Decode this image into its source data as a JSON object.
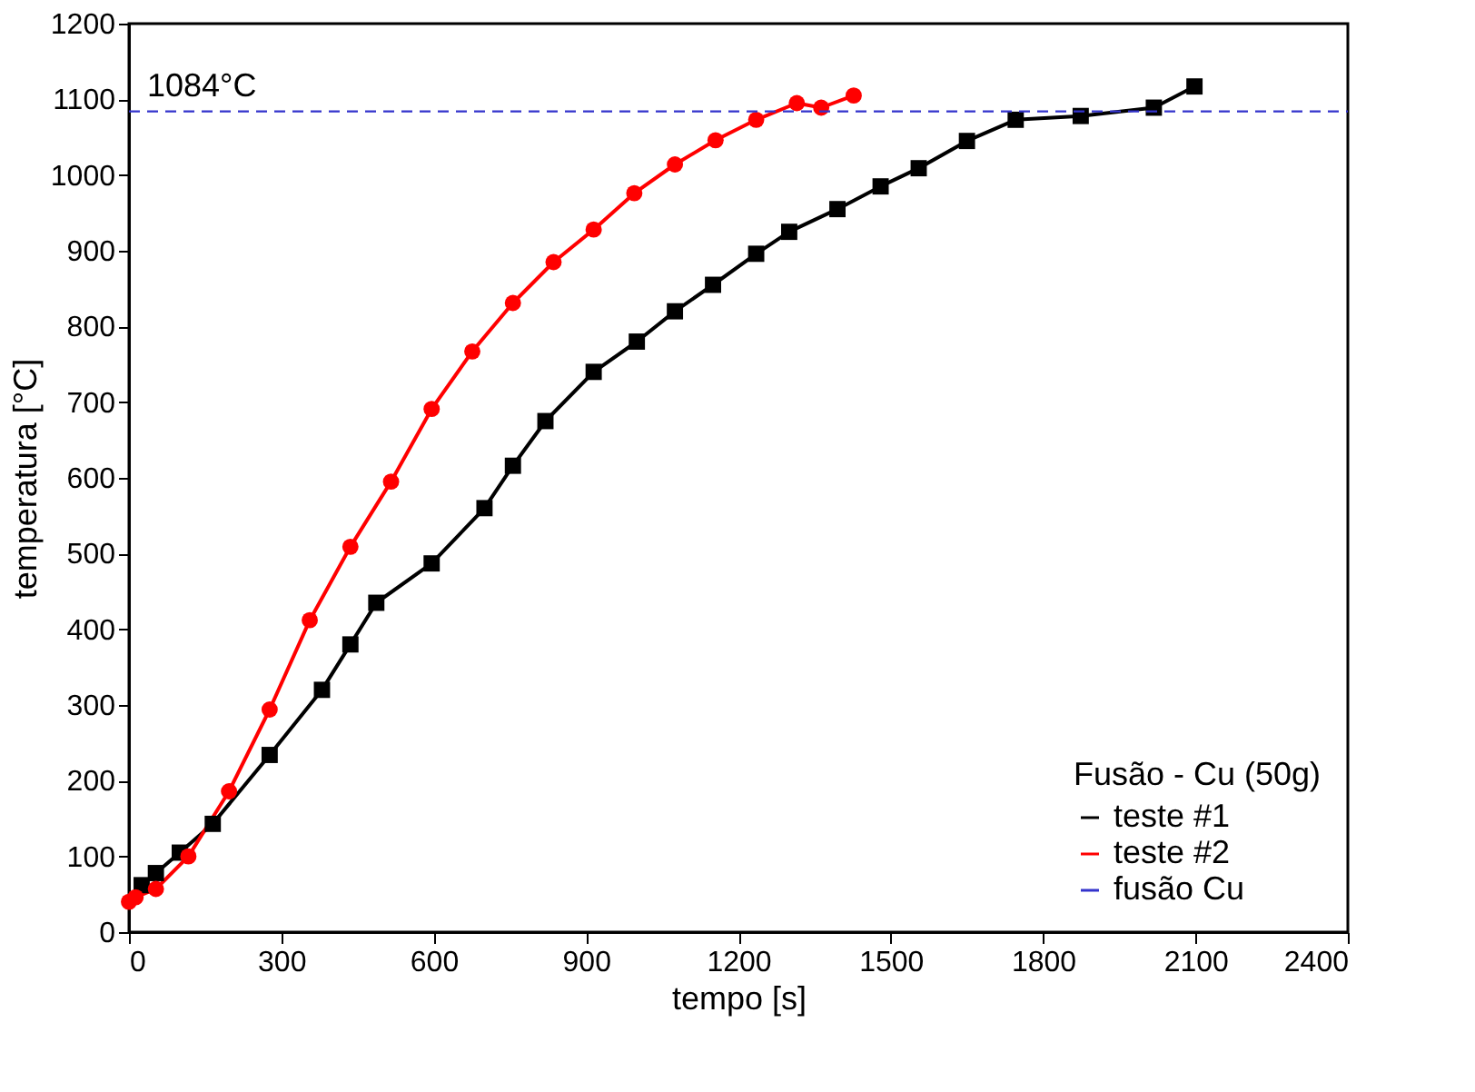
{
  "chart_data": {
    "type": "line",
    "xlabel": "tempo [s]",
    "ylabel": "temperatura [°C]",
    "legend_title": "Fusão - Cu (50g)",
    "legend": "bottom right",
    "grid": false,
    "xlim": [
      0,
      2400
    ],
    "xticks": [
      0,
      300,
      600,
      900,
      1200,
      1500,
      1800,
      2100,
      2400
    ],
    "line_style": "solid",
    "ylim": [
      0,
      1200
    ],
    "yticks": [
      0,
      100,
      200,
      300,
      400,
      500,
      600,
      700,
      800,
      900,
      1000,
      1100,
      1200
    ],
    "series": [
      {
        "name": "teste #1",
        "color": "#000000",
        "marker": "square",
        "x": [
          25,
          53,
          100,
          165,
          277,
          380,
          436,
          487,
          596,
          700,
          756,
          820,
          915,
          1000,
          1075,
          1150,
          1235,
          1300,
          1395,
          1480,
          1555,
          1650,
          1746,
          1874,
          2018,
          2098
        ],
        "values": [
          62,
          78,
          105,
          143,
          234,
          320,
          380,
          435,
          487,
          560,
          616,
          675,
          740,
          780,
          820,
          855,
          896,
          925,
          955,
          985,
          1009,
          1045,
          1073,
          1078,
          1089,
          1117
        ]
      },
      {
        "name": "teste #2",
        "color": "#ff0000",
        "marker": "circle",
        "x": [
          0,
          13,
          53,
          117,
          197,
          277,
          356,
          436,
          516,
          596,
          676,
          756,
          836,
          915,
          995,
          1075,
          1155,
          1235,
          1315,
          1363,
          1427
        ],
        "values": [
          40,
          46,
          57,
          100,
          186,
          294,
          412,
          509,
          595,
          691,
          767,
          831,
          885,
          928,
          976,
          1014,
          1046,
          1073,
          1095,
          1089,
          1105
        ]
      }
    ],
    "ref_lines": [
      {
        "axis": "y",
        "value": 1084,
        "label": "fusão Cu",
        "color": "#3333cc",
        "line_style": "dashed"
      }
    ],
    "annotations": [
      "1084°C"
    ]
  }
}
